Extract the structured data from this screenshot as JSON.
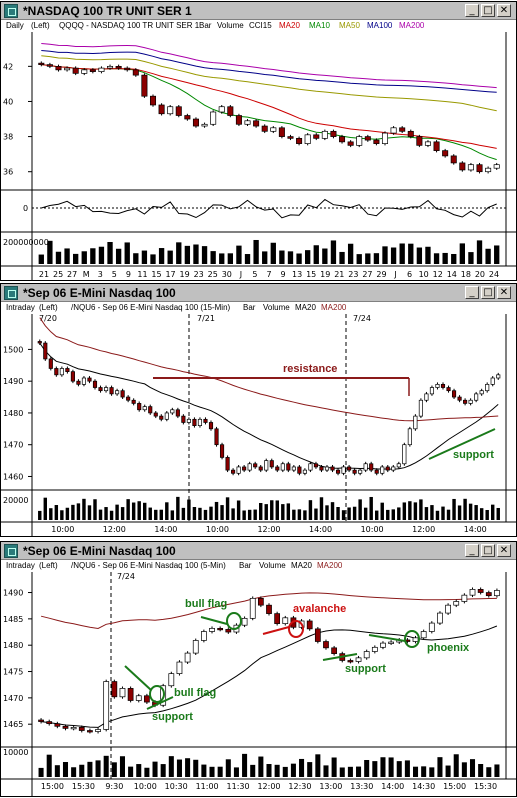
{
  "windows": [
    {
      "title": "*NASDAQ 100 TR UNIT SER 1",
      "info": {
        "interval": "Daily",
        "side": "(Left)",
        "symbol": "QQQQ - NASDAQ 100 TR UNIT SER 1",
        "chart_type": "Bar",
        "volume": "Volume",
        "cci": "CCI15",
        "ma20": "MA20",
        "ma10": "MA10",
        "ma50": "MA50",
        "ma100": "MA100",
        "ma200": "MA200"
      },
      "y_ticks": [
        "42",
        "40",
        "38",
        "36"
      ],
      "cci_tick": "0",
      "vol_tick": "200000000",
      "x_ticks": [
        "21",
        "25",
        "27",
        "M",
        "3",
        "5",
        "9",
        "11",
        "15",
        "17",
        "19",
        "23",
        "25",
        "30",
        "J",
        "5",
        "7",
        "9",
        "13",
        "15",
        "19",
        "21",
        "23",
        "27",
        "29",
        "J",
        "6",
        "10",
        "12",
        "14",
        "18",
        "20",
        "24"
      ]
    },
    {
      "title": "*Sep 06  E-Mini Nasdaq 100",
      "info": {
        "interval": "Intraday",
        "side": "(Left)",
        "symbol": "/NQU6 - Sep 06  E-Mini Nasdaq 100 (15-Min)",
        "chart_type": "Bar",
        "volume": "Volume",
        "ma20": "MA20",
        "ma200": "MA200"
      },
      "y_ticks": [
        "1500",
        "1490",
        "1480",
        "1470",
        "1460"
      ],
      "vol_tick": "20000",
      "date_marks": [
        "7/20",
        "7/21",
        "7/24"
      ],
      "x_ticks": [
        "10:00",
        "12:00",
        "14:00",
        "10:00",
        "12:00",
        "14:00",
        "10:00",
        "12:00",
        "14:00"
      ],
      "annotations": {
        "resistance": "resistance",
        "support": "support"
      }
    },
    {
      "title": "*Sep 06  E-Mini Nasdaq 100",
      "info": {
        "interval": "Intraday",
        "side": "(Left)",
        "symbol": "/NQU6 - Sep 06  E-Mini Nasdaq 100 (5-Min)",
        "chart_type": "Bar",
        "volume": "Volume",
        "ma20": "MA20",
        "ma200": "MA200"
      },
      "y_ticks": [
        "1490",
        "1485",
        "1480",
        "1475",
        "1470",
        "1465"
      ],
      "vol_tick": "10000",
      "date_marks": [
        "7/24"
      ],
      "x_ticks": [
        "15:00",
        "15:30",
        "9:30",
        "10:00",
        "10:30",
        "11:00",
        "11:30",
        "12:00",
        "12:30",
        "13:00",
        "13:30",
        "14:00",
        "14:30",
        "15:00",
        "15:30"
      ],
      "annotations": {
        "bull_flag_1": "bull flag",
        "bull_flag_2": "bull flag",
        "avalanche": "avalanche",
        "support_1": "support",
        "support_2": "support",
        "phoenix": "phoenix"
      }
    }
  ],
  "colors": {
    "ma20": "#cc0000",
    "ma10": "#008800",
    "ma50": "#999900",
    "ma100": "#000088",
    "ma200": "#aa00aa",
    "up": "#ffffff",
    "down": "#8b0000",
    "annot_green": "#1a7a1a",
    "annot_red": "#cc1111",
    "resistance": "#8b1a1a"
  },
  "chart_data": [
    {
      "type": "candlestick",
      "title": "*NASDAQ 100 TR UNIT SER 1",
      "ylim": [
        35.3,
        43.5
      ],
      "closes": [
        42.1,
        42.0,
        41.8,
        41.9,
        41.6,
        41.8,
        41.7,
        41.9,
        42.0,
        41.9,
        41.8,
        41.5,
        40.3,
        39.8,
        39.3,
        39.7,
        39.2,
        39.0,
        38.6,
        38.7,
        39.4,
        39.7,
        39.2,
        38.7,
        38.9,
        38.6,
        38.3,
        38.5,
        38.0,
        37.9,
        37.6,
        38.1,
        37.9,
        38.3,
        38.0,
        37.7,
        37.5,
        38.0,
        37.8,
        37.6,
        38.2,
        38.5,
        38.3,
        38.0,
        37.5,
        37.7,
        37.2,
        36.9,
        36.5,
        36.1,
        36.4,
        36.0,
        36.2,
        36.4
      ]
    },
    {
      "type": "candlestick",
      "title": "*Sep 06  E-Mini Nasdaq 100 (15-Min)",
      "ylim": [
        1457,
        1508
      ],
      "closes": [
        1502,
        1497,
        1494,
        1492,
        1494,
        1493,
        1490,
        1489,
        1491,
        1490,
        1488,
        1487,
        1488,
        1486,
        1487,
        1485,
        1484,
        1483,
        1481,
        1482,
        1480,
        1479,
        1478,
        1480,
        1481,
        1479,
        1477,
        1478,
        1476,
        1478,
        1477,
        1475,
        1470,
        1466,
        1462,
        1461,
        1463,
        1462,
        1464,
        1463,
        1462,
        1465,
        1463,
        1462,
        1464,
        1462,
        1463,
        1461,
        1462,
        1464,
        1463,
        1462,
        1463,
        1462,
        1461,
        1463,
        1462,
        1461,
        1462,
        1464,
        1462,
        1461,
        1463,
        1462,
        1463,
        1464,
        1470,
        1475,
        1479,
        1484,
        1486,
        1488,
        1489,
        1488,
        1487,
        1485,
        1484,
        1483,
        1484,
        1486,
        1487,
        1489,
        1491,
        1492
      ]
    },
    {
      "type": "candlestick",
      "title": "*Sep 06  E-Mini Nasdaq 100 (5-Min)",
      "ylim": [
        1462,
        1492
      ],
      "closes": [
        1465.5,
        1465.1,
        1464.6,
        1464.2,
        1464.4,
        1463.8,
        1463.6,
        1464.0,
        1473.1,
        1470.2,
        1471.8,
        1469.5,
        1470.4,
        1469.2,
        1468.6,
        1472.3,
        1474.6,
        1476.8,
        1478.5,
        1480.9,
        1482.6,
        1483.2,
        1483.0,
        1482.5,
        1483.8,
        1485.1,
        1488.9,
        1487.6,
        1486.0,
        1484.1,
        1485.2,
        1483.4,
        1484.6,
        1483.1,
        1480.7,
        1479.5,
        1478.4,
        1477.1,
        1476.9,
        1477.6,
        1478.8,
        1479.6,
        1480.4,
        1480.6,
        1481.0,
        1480.7,
        1481.4,
        1482.6,
        1484.2,
        1486.1,
        1487.6,
        1488.3,
        1489.5,
        1490.6,
        1490.0,
        1489.4,
        1490.4
      ]
    }
  ]
}
